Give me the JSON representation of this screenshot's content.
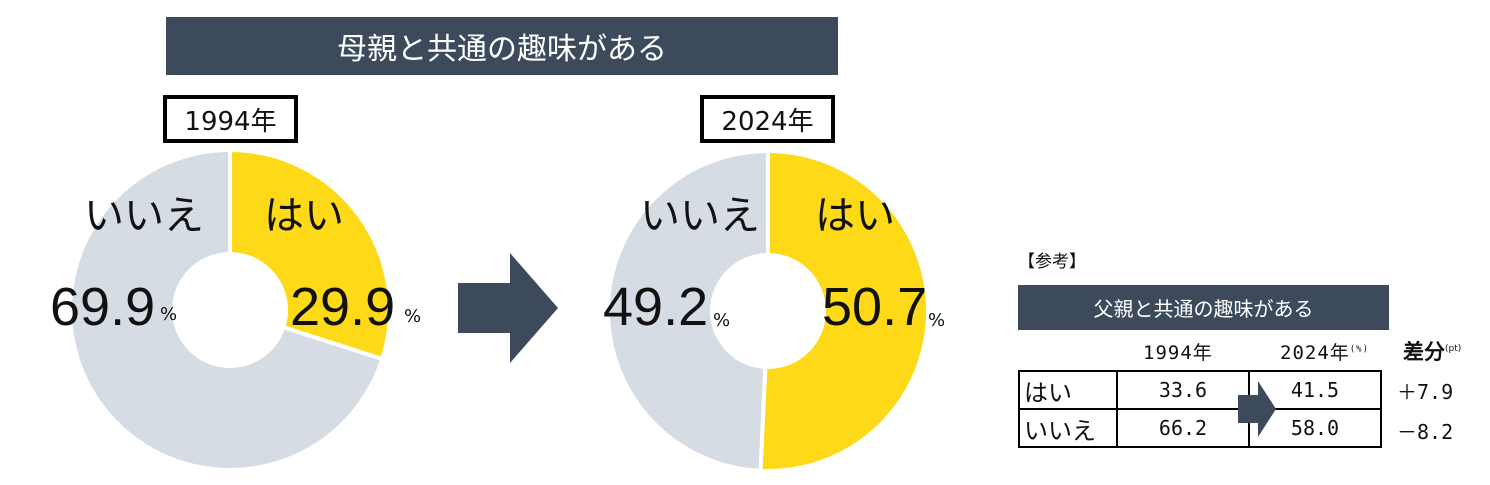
{
  "title": "母親と共通の趣味がある",
  "colors": {
    "yes": "#fdd918",
    "no": "#d6dce4",
    "banner": "#3d4a5c",
    "arrow": "#3d4a5c"
  },
  "chart_data": [
    {
      "type": "pie",
      "title": "1994年",
      "categories": [
        "はい",
        "いいえ"
      ],
      "values": [
        29.9,
        69.9
      ],
      "value_labels": [
        "29.9",
        "69.9"
      ],
      "unit": "%"
    },
    {
      "type": "pie",
      "title": "2024年",
      "categories": [
        "はい",
        "いいえ"
      ],
      "values": [
        50.7,
        49.2
      ],
      "value_labels": [
        "50.7",
        "49.2"
      ],
      "unit": "%"
    },
    {
      "type": "table",
      "title": "父親と共通の趣味がある",
      "columns": [
        "1994年",
        "2024年",
        "差分"
      ],
      "col_units": [
        "",
        "(%)",
        "(pt)"
      ],
      "rows": [
        {
          "label": "はい",
          "v1994": "33.6",
          "v2024": "41.5",
          "diff": "＋7.9"
        },
        {
          "label": "いいえ",
          "v1994": "66.2",
          "v2024": "58.0",
          "diff": "－8.2"
        }
      ]
    }
  ],
  "reference_label": "【参考】"
}
